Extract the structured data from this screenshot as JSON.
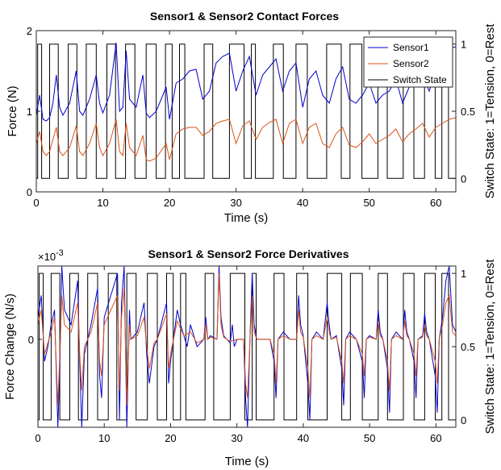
{
  "chart_data": [
    {
      "type": "line",
      "title": "Sensor1 & Sensor2 Contact Forces",
      "xlabel": "Time (s)",
      "ylabel": "Force (N)",
      "ylabel_right": "Switch State: 1=Tension, 0=Rest",
      "xlim": [
        0,
        63
      ],
      "ylim": [
        0,
        2
      ],
      "ylim_right": [
        -0.1,
        1.1
      ],
      "xticks": [
        "0",
        "10",
        "20",
        "30",
        "40",
        "50",
        "60"
      ],
      "yticks": [
        "0",
        "1",
        "2"
      ],
      "yticks_right": [
        "0",
        "0.5",
        "1"
      ],
      "legend": {
        "position": "top-right",
        "entries": [
          "Sensor1",
          "Sensor2",
          "Switch State"
        ]
      },
      "series": [
        {
          "name": "Sensor1",
          "color": "#0000cc",
          "x": [
            0,
            0.5,
            1,
            1.5,
            2,
            2.5,
            3,
            3.5,
            4,
            5,
            6,
            6.5,
            7,
            8,
            9,
            9.5,
            10,
            11,
            12,
            12.5,
            13,
            13.5,
            14,
            15,
            16,
            16.5,
            17,
            18,
            19.5,
            20,
            21,
            22,
            23,
            24,
            25,
            26,
            27,
            28,
            29,
            30,
            31,
            32,
            33,
            34,
            35,
            36,
            37,
            38,
            39,
            40,
            41,
            42,
            43,
            44,
            45,
            46,
            47,
            48,
            49,
            50,
            51,
            52,
            53,
            54,
            55,
            56,
            57,
            58,
            59,
            60,
            61,
            62,
            63
          ],
          "y": [
            0.95,
            1.2,
            0.9,
            0.88,
            0.92,
            1.1,
            1.45,
            1.05,
            0.95,
            1.1,
            1.5,
            1.0,
            0.95,
            1.15,
            1.45,
            1.1,
            0.98,
            1.2,
            1.85,
            1.0,
            1.05,
            1.75,
            1.15,
            1.05,
            1.45,
            0.98,
            0.92,
            1.0,
            1.3,
            0.9,
            1.35,
            1.4,
            1.5,
            1.52,
            1.15,
            1.25,
            1.6,
            1.68,
            1.72,
            1.25,
            1.5,
            1.68,
            1.2,
            1.45,
            1.55,
            1.65,
            1.25,
            1.5,
            1.6,
            1.05,
            1.4,
            1.5,
            1.2,
            1.1,
            1.4,
            1.55,
            1.15,
            1.1,
            1.2,
            1.35,
            1.1,
            1.2,
            1.25,
            1.4,
            1.1,
            1.3,
            1.35,
            1.45,
            1.25,
            1.5,
            1.6,
            1.78,
            1.8
          ]
        },
        {
          "name": "Sensor2",
          "color": "#d95319",
          "x": [
            0,
            0.5,
            1,
            1.5,
            2,
            2.5,
            3,
            3.5,
            4,
            5,
            6,
            6.5,
            7,
            8,
            9,
            9.5,
            10,
            11,
            12,
            12.5,
            13,
            13.5,
            14,
            15,
            16,
            16.5,
            17,
            18,
            19.5,
            20,
            21,
            22,
            23,
            24,
            25,
            26,
            27,
            28,
            29,
            30,
            31,
            32,
            33,
            34,
            35,
            36,
            37,
            38,
            39,
            40,
            41,
            42,
            43,
            44,
            45,
            46,
            47,
            48,
            49,
            50,
            51,
            52,
            53,
            54,
            55,
            56,
            57,
            58,
            59,
            60,
            61,
            62,
            63
          ],
          "y": [
            0.6,
            0.75,
            0.5,
            0.45,
            0.5,
            0.65,
            0.8,
            0.5,
            0.45,
            0.55,
            0.82,
            0.5,
            0.45,
            0.6,
            0.85,
            0.55,
            0.45,
            0.6,
            0.9,
            0.5,
            0.45,
            0.85,
            0.55,
            0.45,
            0.7,
            0.4,
            0.38,
            0.42,
            0.6,
            0.4,
            0.72,
            0.78,
            0.8,
            0.8,
            0.7,
            0.75,
            0.85,
            0.88,
            0.9,
            0.6,
            0.82,
            0.88,
            0.65,
            0.8,
            0.86,
            0.9,
            0.6,
            0.85,
            0.9,
            0.6,
            0.8,
            0.85,
            0.6,
            0.55,
            0.72,
            0.8,
            0.58,
            0.55,
            0.62,
            0.72,
            0.6,
            0.65,
            0.7,
            0.78,
            0.62,
            0.72,
            0.78,
            0.85,
            0.68,
            0.8,
            0.85,
            0.9,
            0.92
          ]
        },
        {
          "name": "Switch State",
          "color": "#000000",
          "axis": "right",
          "transitions": [
            0.2,
            0.8,
            2.0,
            3.3,
            4.8,
            6.1,
            7.5,
            9.0,
            10.6,
            11.9,
            13.4,
            14.8,
            16.5,
            18.0,
            19.4,
            20.4,
            21.5,
            22.3,
            25.2,
            26.5,
            29.0,
            31.2,
            32.3,
            32.9,
            35.6,
            37.1,
            39.0,
            40.7,
            43.6,
            45.8,
            47.1,
            48.9,
            51.3,
            52.7,
            55.1,
            56.7,
            58.3,
            59.9,
            60.9,
            61.9
          ],
          "start_state": 0,
          "end_state": 1
        }
      ]
    },
    {
      "type": "line",
      "title": "Sensor1 & Sensor2 Force Derivatives",
      "xlabel": "Time (s)",
      "ylabel": "Force Change (N/s)",
      "ylabel_right": "Switch State: 1=Tension, 0=Rest",
      "exponent_label": "×10",
      "exponent_value": "-3",
      "xlim": [
        0,
        63
      ],
      "ylim": [
        -1.2,
        1.0
      ],
      "ylim_right": [
        -0.05,
        1.05
      ],
      "xticks": [
        "0",
        "10",
        "20",
        "30",
        "40",
        "50",
        "60"
      ],
      "yticks": [
        "0"
      ],
      "yticks_right": [
        "0",
        "0.5",
        "1"
      ],
      "series": [
        {
          "name": "Sensor1",
          "color": "#0000cc",
          "x": [
            0,
            0.5,
            1,
            1.5,
            2,
            2.5,
            3,
            3.3,
            3.6,
            4,
            5,
            6,
            6.3,
            6.6,
            7,
            8,
            9,
            9.3,
            9.6,
            10,
            11,
            12,
            12.3,
            12.6,
            13,
            13.4,
            13.8,
            14,
            15,
            16,
            16.4,
            16.8,
            17.5,
            18,
            19.4,
            19.7,
            20,
            21,
            21.5,
            22,
            22.5,
            23,
            24,
            25,
            25.3,
            25.6,
            26,
            27,
            27.3,
            27.6,
            28,
            29,
            29.3,
            29.6,
            30,
            31,
            31.3,
            31.6,
            32,
            32.3,
            32.6,
            33,
            34,
            35,
            35.6,
            35.9,
            36.2,
            37,
            38,
            39,
            39.3,
            39.6,
            40,
            40.7,
            41,
            41.3,
            42,
            43,
            43.6,
            43.9,
            44.2,
            45,
            45.8,
            46.1,
            46.4,
            47,
            48,
            48.9,
            49.2,
            49.5,
            50,
            51,
            51.3,
            51.6,
            52,
            52.7,
            53,
            53.3,
            54,
            55,
            55.3,
            55.6,
            56,
            56.7,
            57,
            57.3,
            58,
            58.3,
            58.6,
            59,
            59.9,
            60.2,
            60.5,
            61,
            61.5,
            62,
            62.5,
            63
          ],
          "y": [
            0.3,
            0.6,
            -0.3,
            -0.1,
            0.2,
            0.4,
            -1.2,
            -0.4,
            1.0,
            0.4,
            0.2,
            0.8,
            -0.3,
            -1.2,
            -0.2,
            0.2,
            0.7,
            -0.5,
            -0.8,
            0.3,
            0.6,
            0.9,
            -1.1,
            0.5,
            1.0,
            -1.2,
            0.4,
            0.0,
            0.1,
            0.5,
            -0.2,
            -0.6,
            -0.1,
            0.0,
            0.5,
            -0.6,
            -0.3,
            0.4,
            0.2,
            0.05,
            -0.1,
            0.2,
            -0.1,
            0.0,
            0.3,
            0.0,
            0.05,
            0.0,
            1.0,
            0.3,
            0.05,
            -0.05,
            0.2,
            -0.1,
            0.0,
            0.0,
            -0.8,
            -1.2,
            0.1,
            0.9,
            0.2,
            0.0,
            0.0,
            0.0,
            -0.3,
            -0.8,
            0.0,
            0.1,
            0.0,
            0.0,
            0.6,
            0.2,
            0.05,
            -0.6,
            -1.1,
            0.0,
            0.1,
            0.0,
            0.5,
            0.2,
            0.0,
            0.05,
            -0.4,
            -0.9,
            0.0,
            0.1,
            0.0,
            -0.3,
            -0.8,
            0.0,
            0.05,
            0.0,
            0.4,
            0.1,
            0.0,
            -0.4,
            -1.0,
            0.0,
            0.1,
            0.0,
            0.4,
            0.1,
            0.0,
            -0.3,
            -0.8,
            0.0,
            0.05,
            0.35,
            0.1,
            0.0,
            -0.5,
            -1.0,
            0.0,
            0.3,
            0.8,
            1.0,
            0.2,
            0.1
          ]
        },
        {
          "name": "Sensor2",
          "color": "#d95319",
          "x": [
            0,
            0.5,
            1,
            1.5,
            2,
            2.5,
            3,
            3.3,
            3.6,
            4,
            5,
            6,
            6.3,
            6.6,
            7,
            8,
            9,
            9.3,
            9.6,
            10,
            11,
            12,
            12.3,
            12.6,
            13,
            13.4,
            13.8,
            14,
            15,
            16,
            16.4,
            16.8,
            17.5,
            18,
            19.4,
            19.7,
            20,
            21,
            22,
            23,
            24,
            25,
            25.3,
            25.6,
            26,
            27,
            27.3,
            27.6,
            28,
            29,
            30,
            31,
            31.3,
            31.6,
            32,
            32.3,
            32.6,
            33,
            34,
            35,
            35.6,
            35.9,
            36.2,
            37,
            38,
            39,
            39.3,
            39.6,
            40,
            40.7,
            41,
            41.3,
            42,
            43,
            43.6,
            43.9,
            44.2,
            45,
            45.8,
            46.1,
            46.4,
            47,
            48,
            48.9,
            49.2,
            49.5,
            50,
            51,
            51.3,
            51.6,
            52,
            52.7,
            53,
            53.3,
            54,
            55,
            55.3,
            55.6,
            56,
            56.7,
            57,
            57.3,
            58,
            58.3,
            58.6,
            59,
            59.9,
            60.2,
            60.5,
            61,
            61.5,
            62,
            62.5,
            63
          ],
          "y": [
            0.2,
            0.4,
            -0.2,
            -0.05,
            0.1,
            0.3,
            -0.9,
            -0.2,
            0.6,
            0.2,
            0.1,
            0.5,
            -0.2,
            -0.7,
            -0.1,
            0.1,
            0.5,
            -0.3,
            -0.5,
            0.2,
            0.4,
            0.6,
            -0.7,
            0.3,
            0.7,
            -0.9,
            0.2,
            0.0,
            0.05,
            0.3,
            -0.1,
            -0.4,
            -0.05,
            0.0,
            0.35,
            -0.4,
            -0.2,
            0.25,
            0.05,
            0.1,
            -0.05,
            0.0,
            0.2,
            0.0,
            0.03,
            0.0,
            0.9,
            0.2,
            0.03,
            -0.03,
            0.0,
            0.0,
            -0.6,
            -0.8,
            0.05,
            0.6,
            0.1,
            0.0,
            0.0,
            0.0,
            -0.2,
            -0.6,
            0.0,
            0.05,
            0.0,
            0.0,
            0.4,
            0.1,
            0.03,
            -0.4,
            -0.8,
            0.0,
            0.05,
            0.0,
            0.3,
            0.1,
            0.0,
            0.03,
            -0.3,
            -0.6,
            0.0,
            0.05,
            0.0,
            -0.2,
            -0.5,
            0.0,
            0.03,
            0.0,
            0.25,
            0.05,
            0.0,
            -0.3,
            -0.7,
            0.0,
            0.05,
            0.0,
            0.25,
            0.05,
            0.0,
            -0.2,
            -0.5,
            0.0,
            0.03,
            0.2,
            0.05,
            0.0,
            -0.3,
            -0.6,
            0.0,
            0.2,
            0.5,
            0.6,
            0.1,
            0.05
          ]
        },
        {
          "name": "Switch State",
          "color": "#000000",
          "axis": "right",
          "transitions": [
            0.2,
            0.8,
            2.0,
            3.3,
            4.8,
            6.1,
            7.5,
            9.0,
            10.6,
            11.9,
            13.4,
            14.8,
            16.5,
            18.0,
            19.4,
            20.4,
            21.5,
            22.3,
            25.2,
            26.5,
            29.0,
            31.2,
            32.3,
            32.9,
            35.6,
            37.1,
            39.0,
            40.7,
            43.6,
            45.8,
            47.1,
            48.9,
            51.3,
            52.7,
            55.1,
            56.7,
            58.3,
            59.9,
            60.9,
            61.9
          ],
          "start_state": 0,
          "end_state": 1
        }
      ]
    }
  ]
}
